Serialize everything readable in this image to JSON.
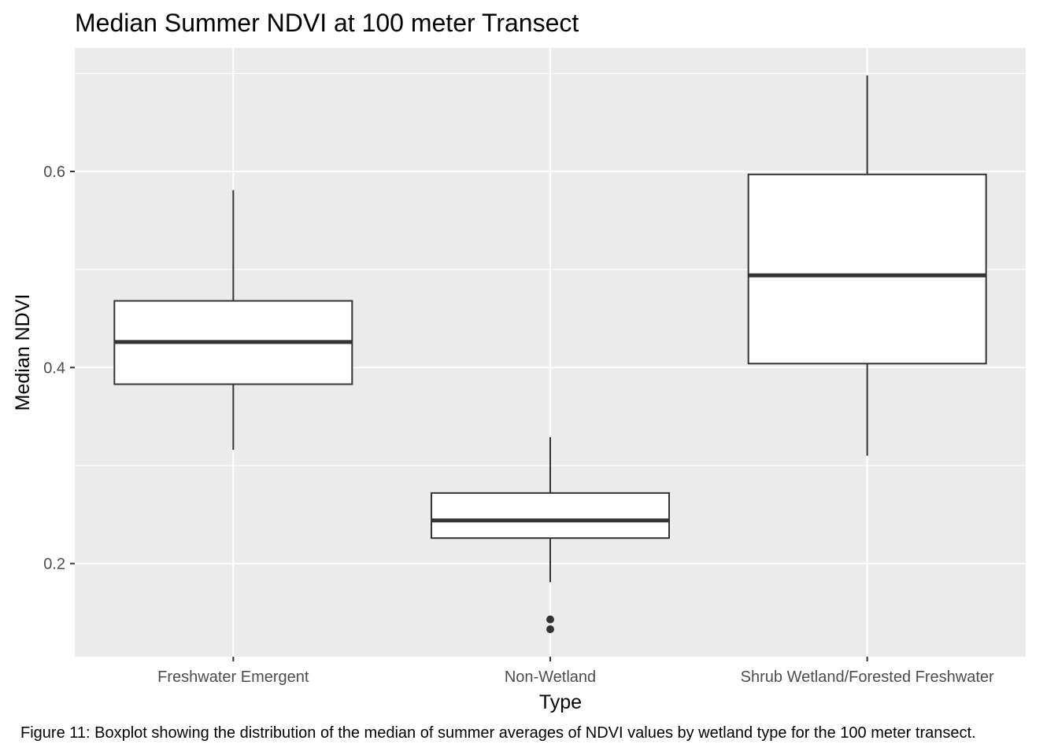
{
  "chart_data": {
    "type": "boxplot",
    "title": "Median Summer NDVI at 100 meter Transect",
    "xlabel": "Type",
    "ylabel": "Median NDVI",
    "categories": [
      "Freshwater Emergent",
      "Non-Wetland",
      "Shrub Wetland/Forested Freshwater"
    ],
    "boxes": [
      {
        "category": "Freshwater Emergent",
        "whisker_low": 0.316,
        "q1": 0.383,
        "median": 0.426,
        "q3": 0.468,
        "whisker_high": 0.581,
        "outliers": []
      },
      {
        "category": "Non-Wetland",
        "whisker_low": 0.181,
        "q1": 0.226,
        "median": 0.244,
        "q3": 0.272,
        "whisker_high": 0.329,
        "outliers": [
          0.143,
          0.133
        ]
      },
      {
        "category": "Shrub Wetland/Forested Freshwater",
        "whisker_low": 0.31,
        "q1": 0.404,
        "median": 0.494,
        "q3": 0.597,
        "whisker_high": 0.698,
        "outliers": []
      }
    ],
    "yticks": [
      0.2,
      0.4,
      0.6
    ],
    "ytick_labels": [
      "0.2",
      "0.4",
      "0.6"
    ],
    "ylim": [
      0.105,
      0.726
    ],
    "grid": true,
    "legend": "none"
  },
  "caption": "Figure 11: Boxplot showing the distribution of the median of summer averages of NDVI values by wetland type for the 100 meter transect.",
  "colors": {
    "panel_background": "#ebebeb",
    "grid": "#ffffff",
    "box_fill": "#ffffff",
    "box_outline": "#333333",
    "tick_label": "#4d4d4d"
  }
}
